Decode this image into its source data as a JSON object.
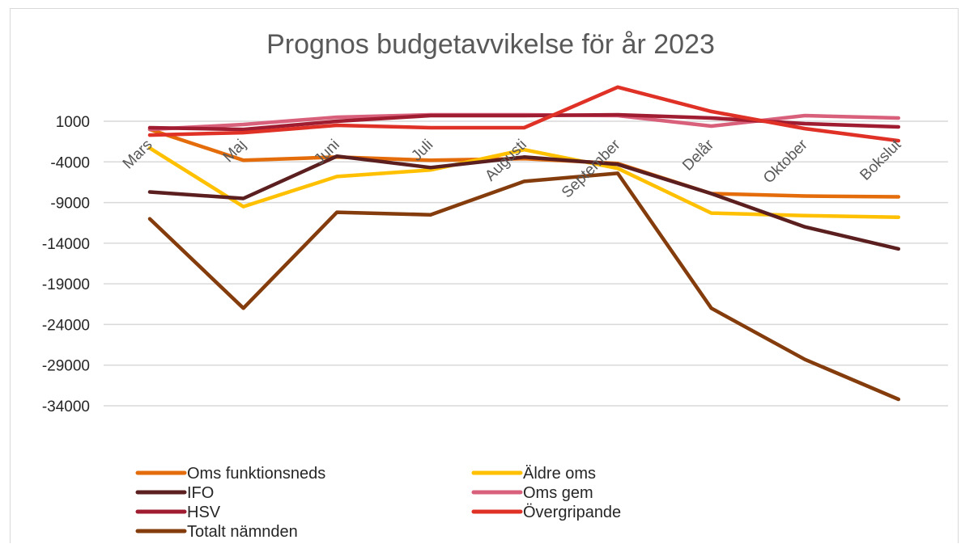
{
  "chart_data": {
    "type": "line",
    "title": "Prognos budgetavvikelse  för år 2023",
    "categories": [
      "Mars",
      "Maj",
      "Juni",
      "Juli",
      "Augusti",
      "September",
      "Delår",
      "Oktober",
      "Bokslut"
    ],
    "yticks": [
      1000,
      -4000,
      -9000,
      -14000,
      -19000,
      -24000,
      -29000,
      -34000
    ],
    "ylim": [
      -34000,
      1000
    ],
    "grid": "horizontal",
    "legend_position": "bottom",
    "series": [
      {
        "name": "Oms funktionsneds",
        "color": "#E46C0A",
        "values": [
          0,
          -3800,
          -3400,
          -3800,
          -3600,
          -4200,
          -7900,
          -8200,
          -8300
        ]
      },
      {
        "name": "Äldre oms",
        "color": "#FFC000",
        "values": [
          -2300,
          -9500,
          -5800,
          -5000,
          -2500,
          -4800,
          -10300,
          -10600,
          -10800
        ]
      },
      {
        "name": "IFO",
        "color": "#5B1F1F",
        "values": [
          -7700,
          -8500,
          -3300,
          -4700,
          -3400,
          -4300,
          -7900,
          -12000,
          -14700
        ]
      },
      {
        "name": "Oms gem",
        "color": "#D9607A",
        "values": [
          0,
          600,
          1500,
          1800,
          1800,
          1700,
          400,
          1700,
          1400
        ]
      },
      {
        "name": "HSV",
        "color": "#A01C30",
        "values": [
          200,
          0,
          1000,
          1700,
          1700,
          1800,
          1400,
          700,
          300
        ]
      },
      {
        "name": "Övergripande",
        "color": "#E03127",
        "values": [
          -700,
          -400,
          500,
          200,
          200,
          5200,
          2200,
          100,
          -1400
        ]
      },
      {
        "name": "Totalt nämnden",
        "color": "#843C0C",
        "values": [
          -11000,
          -22000,
          -10200,
          -10500,
          -6400,
          -5400,
          -22000,
          -28300,
          -33200
        ]
      }
    ]
  }
}
